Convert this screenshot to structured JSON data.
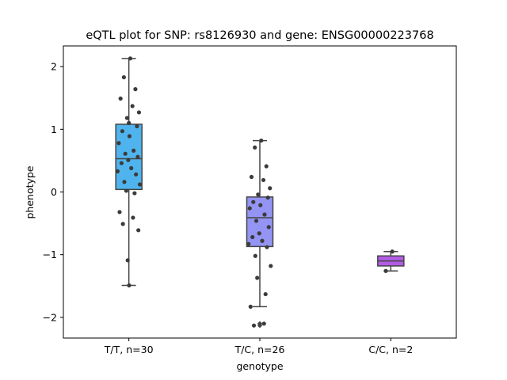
{
  "chart_data": {
    "type": "box",
    "title": "eQTL plot for SNP: rs8126930 and gene: ENSG00000223768",
    "xlabel": "genotype",
    "ylabel": "phenotype",
    "ylim": [
      -2.33,
      2.33
    ],
    "yticks": [
      -2,
      -1,
      0,
      1,
      2
    ],
    "ytick_labels": [
      "−2",
      "−1",
      "0",
      "1",
      "2"
    ],
    "grid": false,
    "categories": [
      "T/T, n=30",
      "T/C, n=26",
      "C/C, n=2"
    ],
    "boxes": [
      {
        "category": "T/T, n=30",
        "color": "#4fb4ed",
        "whisker_low": -1.49,
        "q1": 0.04,
        "median": 0.53,
        "q3": 1.08,
        "whisker_high": 2.13,
        "outliers": [],
        "points": [
          2.13,
          1.83,
          1.64,
          1.49,
          1.37,
          1.27,
          1.18,
          1.05,
          0.97,
          0.89,
          0.78,
          0.66,
          0.61,
          0.56,
          0.51,
          0.46,
          0.38,
          0.33,
          0.28,
          0.16,
          0.12,
          0.02,
          -0.02,
          -0.32,
          -0.41,
          -0.51,
          -0.61,
          -1.09,
          -1.49,
          1.1
        ]
      },
      {
        "category": "T/C, n=26",
        "color": "#9494f5",
        "whisker_low": -1.83,
        "q1": -0.87,
        "median": -0.41,
        "q3": -0.08,
        "whisker_high": 0.82,
        "outliers": [
          -2.1,
          -2.13
        ],
        "points": [
          0.82,
          0.71,
          0.41,
          0.24,
          0.19,
          0.06,
          -0.04,
          -0.09,
          -0.16,
          -0.21,
          -0.26,
          -0.36,
          -0.46,
          -0.56,
          -0.66,
          -0.72,
          -0.78,
          -0.83,
          -0.88,
          -1.02,
          -1.18,
          -1.37,
          -1.63,
          -1.83,
          -2.1,
          -2.13
        ]
      },
      {
        "category": "C/C, n=2",
        "color": "#b35ce6",
        "whisker_low": -1.26,
        "q1": -1.18,
        "median": -1.1,
        "q3": -1.02,
        "whisker_high": -0.95,
        "outliers": [],
        "points": [
          -0.95,
          -1.26
        ]
      }
    ]
  }
}
